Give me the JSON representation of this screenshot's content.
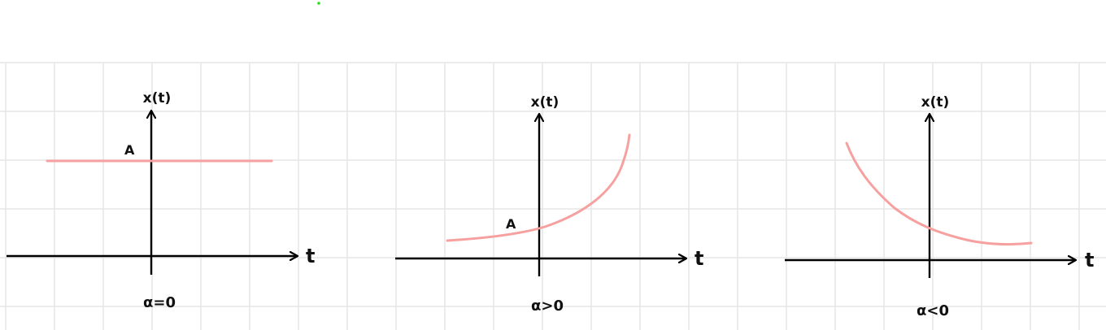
{
  "colors": {
    "background": "#ffffff",
    "grid": "#e6e6e6",
    "axis": "#000000",
    "curve": "#f7a0a0",
    "dot": "#22dd22"
  },
  "panels": [
    {
      "y_axis_label": "x(t)",
      "x_axis_label": "t",
      "curve_label": "A",
      "condition": "α=0",
      "shape": "constant"
    },
    {
      "y_axis_label": "x(t)",
      "x_axis_label": "t",
      "curve_label": "A",
      "condition": "α>0",
      "shape": "growing-exponential"
    },
    {
      "y_axis_label": "x(t)",
      "x_axis_label": "t",
      "condition": "α<0",
      "shape": "decaying-exponential"
    }
  ]
}
